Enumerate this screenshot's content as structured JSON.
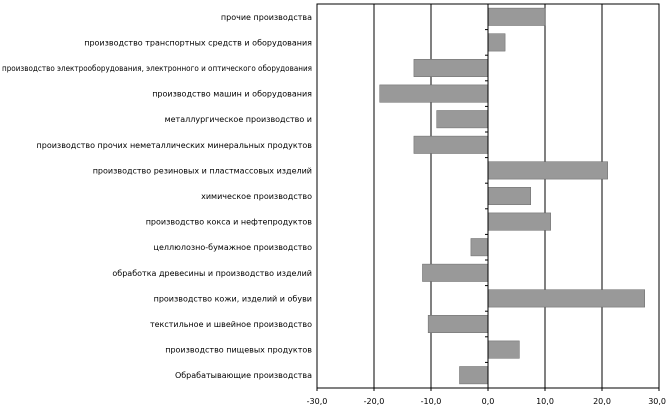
{
  "chart_data": {
    "type": "bar",
    "orientation": "horizontal",
    "categories": [
      "прочие производства",
      "производство транспортных средств и оборудования",
      "производство электрооборудования, электронного и оптического оборудования",
      "производство машин и оборудования",
      "металлургическое производство и",
      "производство прочих неметаллических минеральных продуктов",
      "производство резиновых и пластмассовых изделий",
      "химическое производство",
      "производство кокса и нефтепродуктов",
      "целлюлозно-бумажное производство",
      "обработка древесины и производство изделий",
      "производство кожи, изделий и обуви",
      "текстильное и швейное производство",
      "производство пищевых продуктов",
      "Обрабатывающие производства"
    ],
    "values": [
      10.0,
      3.0,
      -13.0,
      -19.0,
      -9.0,
      -13.0,
      21.0,
      7.5,
      11.0,
      -3.0,
      -11.5,
      27.5,
      -10.5,
      5.5,
      -5.0
    ],
    "xlim": [
      -30,
      30
    ],
    "xticks": [
      "-30,0",
      "-20,0",
      "-10,0",
      "0,0",
      "10,0",
      "20,0",
      "30,0"
    ],
    "xtick_values": [
      -30,
      -20,
      -10,
      0,
      10,
      20,
      30
    ],
    "title": "",
    "xlabel": "",
    "ylabel": "",
    "grid": "vertical gridlines at major ticks",
    "legend": "none",
    "colors": {
      "bar": "#999999",
      "bar_edge": "#666666",
      "grid": "#000000",
      "axis": "#000000"
    }
  }
}
